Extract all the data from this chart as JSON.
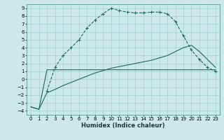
{
  "xlabel": "Humidex (Indice chaleur)",
  "bg_color": "#cce8e8",
  "grid_color": "#aad4d4",
  "line_color": "#1a6b5a",
  "xlim": [
    -0.5,
    23.5
  ],
  "ylim": [
    -4.5,
    9.5
  ],
  "xticks": [
    0,
    1,
    2,
    3,
    4,
    5,
    6,
    7,
    8,
    9,
    10,
    11,
    12,
    13,
    14,
    15,
    16,
    17,
    18,
    19,
    20,
    21,
    22,
    23
  ],
  "yticks": [
    -4,
    -3,
    -2,
    -1,
    0,
    1,
    2,
    3,
    4,
    5,
    6,
    7,
    8,
    9
  ],
  "curve1_x": [
    2,
    3,
    4,
    5,
    6,
    7,
    8,
    9,
    10,
    11,
    12,
    13,
    14,
    15,
    16,
    17,
    18,
    19,
    20,
    21,
    22,
    23
  ],
  "curve1_y": [
    -1.5,
    1.5,
    3.0,
    4.0,
    5.0,
    6.5,
    7.5,
    8.3,
    9.0,
    8.7,
    8.5,
    8.4,
    8.4,
    8.5,
    8.5,
    8.3,
    7.3,
    5.5,
    3.7,
    2.5,
    1.5,
    1.0
  ],
  "curve2_x": [
    0,
    1,
    2,
    3,
    23
  ],
  "curve2_y": [
    -3.5,
    -3.8,
    1.2,
    1.2,
    1.2
  ],
  "curve3_x": [
    0,
    1,
    2,
    3,
    4,
    5,
    6,
    7,
    8,
    9,
    10,
    11,
    12,
    13,
    14,
    15,
    16,
    17,
    18,
    19,
    20,
    21,
    22,
    23
  ],
  "curve3_y": [
    -3.5,
    -3.8,
    -1.7,
    -1.3,
    -0.8,
    -0.4,
    0.0,
    0.4,
    0.8,
    1.1,
    1.4,
    1.6,
    1.8,
    2.0,
    2.2,
    2.4,
    2.7,
    3.0,
    3.5,
    4.0,
    4.3,
    3.5,
    2.5,
    1.5
  ]
}
